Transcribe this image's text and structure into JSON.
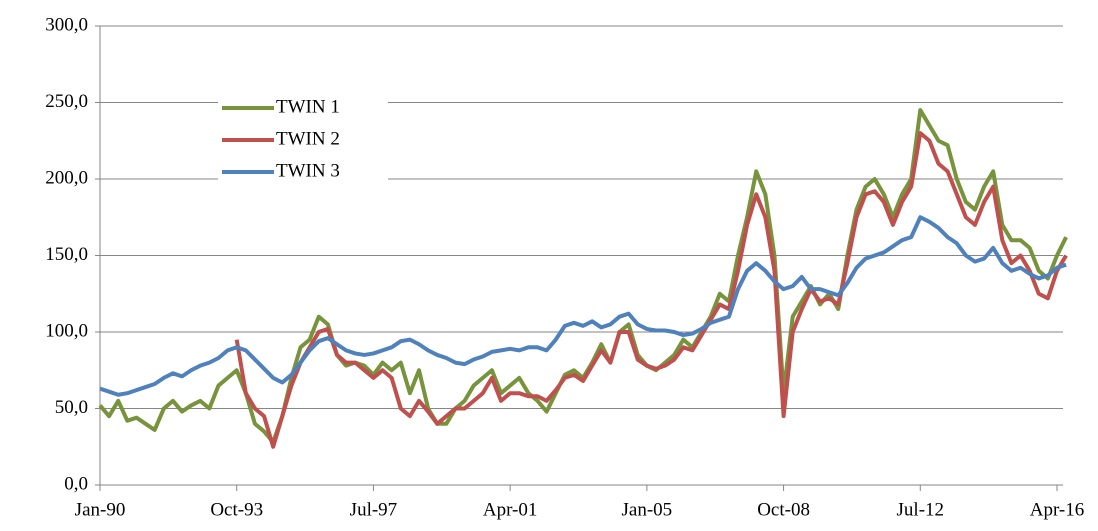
{
  "chart_data": {
    "type": "line",
    "categories": [
      "Jan-90",
      null,
      null,
      null,
      null,
      null,
      null,
      null,
      null,
      null,
      null,
      null,
      null,
      null,
      null,
      "Oct-93",
      null,
      null,
      null,
      null,
      null,
      null,
      null,
      null,
      null,
      null,
      null,
      null,
      null,
      null,
      "Jul-97",
      null,
      null,
      null,
      null,
      null,
      null,
      null,
      null,
      null,
      null,
      null,
      null,
      null,
      null,
      "Apr-01",
      null,
      null,
      null,
      null,
      null,
      null,
      null,
      null,
      null,
      null,
      null,
      null,
      null,
      null,
      "Jan-05",
      null,
      null,
      null,
      null,
      null,
      null,
      null,
      null,
      null,
      null,
      null,
      null,
      null,
      null,
      "Oct-08",
      null,
      null,
      null,
      null,
      null,
      null,
      null,
      null,
      null,
      null,
      null,
      null,
      null,
      null,
      "Jul-12",
      null,
      null,
      null,
      null,
      null,
      null,
      null,
      null,
      null,
      null,
      null,
      null,
      null,
      null,
      "Apr-16",
      null
    ],
    "series": [
      {
        "name": "TWIN 1",
        "color": "#77933c",
        "values": [
          52,
          45,
          55,
          42,
          44,
          40,
          36,
          50,
          55,
          48,
          52,
          55,
          50,
          65,
          70,
          75,
          60,
          40,
          35,
          28,
          45,
          70,
          90,
          95,
          110,
          105,
          85,
          78,
          80,
          78,
          72,
          80,
          75,
          80,
          60,
          75,
          50,
          40,
          40,
          50,
          55,
          65,
          70,
          75,
          60,
          65,
          70,
          60,
          55,
          48,
          60,
          72,
          75,
          70,
          80,
          92,
          80,
          100,
          105,
          85,
          78,
          75,
          80,
          85,
          95,
          90,
          100,
          110,
          125,
          120,
          150,
          175,
          205,
          190,
          150,
          60,
          110,
          120,
          130,
          118,
          125,
          115,
          150,
          180,
          195,
          200,
          190,
          175,
          190,
          200,
          245,
          235,
          225,
          222,
          200,
          185,
          180,
          195,
          205,
          170,
          160,
          160,
          155,
          140,
          135,
          150,
          162
        ]
      },
      {
        "name": "TWIN 2",
        "color": "#c0504d",
        "values": [
          null,
          null,
          null,
          null,
          null,
          null,
          null,
          null,
          null,
          null,
          null,
          null,
          null,
          null,
          null,
          95,
          60,
          50,
          45,
          25,
          45,
          65,
          80,
          90,
          100,
          102,
          85,
          80,
          80,
          75,
          70,
          75,
          70,
          50,
          45,
          55,
          48,
          40,
          45,
          50,
          50,
          55,
          60,
          70,
          55,
          60,
          60,
          58,
          58,
          55,
          62,
          70,
          72,
          68,
          78,
          88,
          80,
          100,
          100,
          82,
          78,
          76,
          78,
          82,
          90,
          88,
          98,
          108,
          118,
          115,
          140,
          170,
          190,
          175,
          140,
          45,
          100,
          115,
          128,
          120,
          122,
          118,
          145,
          175,
          190,
          192,
          185,
          170,
          185,
          195,
          230,
          225,
          210,
          205,
          190,
          175,
          170,
          185,
          195,
          160,
          145,
          150,
          140,
          125,
          122,
          140,
          150
        ]
      },
      {
        "name": "TWIN 3",
        "color": "#4f81bd",
        "values": [
          63,
          61,
          59,
          60,
          62,
          64,
          66,
          70,
          73,
          71,
          75,
          78,
          80,
          83,
          88,
          90,
          88,
          82,
          76,
          70,
          67,
          72,
          80,
          88,
          94,
          96,
          92,
          88,
          86,
          85,
          86,
          88,
          90,
          94,
          95,
          92,
          88,
          85,
          83,
          80,
          79,
          82,
          84,
          87,
          88,
          89,
          88,
          90,
          90,
          88,
          95,
          104,
          106,
          104,
          107,
          103,
          105,
          110,
          112,
          105,
          102,
          101,
          101,
          100,
          98,
          99,
          102,
          106,
          108,
          110,
          128,
          140,
          145,
          140,
          133,
          128,
          130,
          136,
          128,
          128,
          126,
          124,
          132,
          142,
          148,
          150,
          152,
          156,
          160,
          162,
          175,
          172,
          168,
          162,
          158,
          150,
          146,
          148,
          155,
          145,
          140,
          142,
          138,
          135,
          137,
          142,
          144
        ]
      }
    ],
    "ylim": [
      0,
      300
    ],
    "yticks": [
      {
        "value": 0,
        "label": "0,0"
      },
      {
        "value": 50,
        "label": "50,0"
      },
      {
        "value": 100,
        "label": "100,0"
      },
      {
        "value": 150,
        "label": "150,0"
      },
      {
        "value": 200,
        "label": "200,0"
      },
      {
        "value": 250,
        "label": "250,0"
      },
      {
        "value": 300,
        "label": "300,0"
      }
    ],
    "grid": true,
    "legend": "upper left"
  }
}
